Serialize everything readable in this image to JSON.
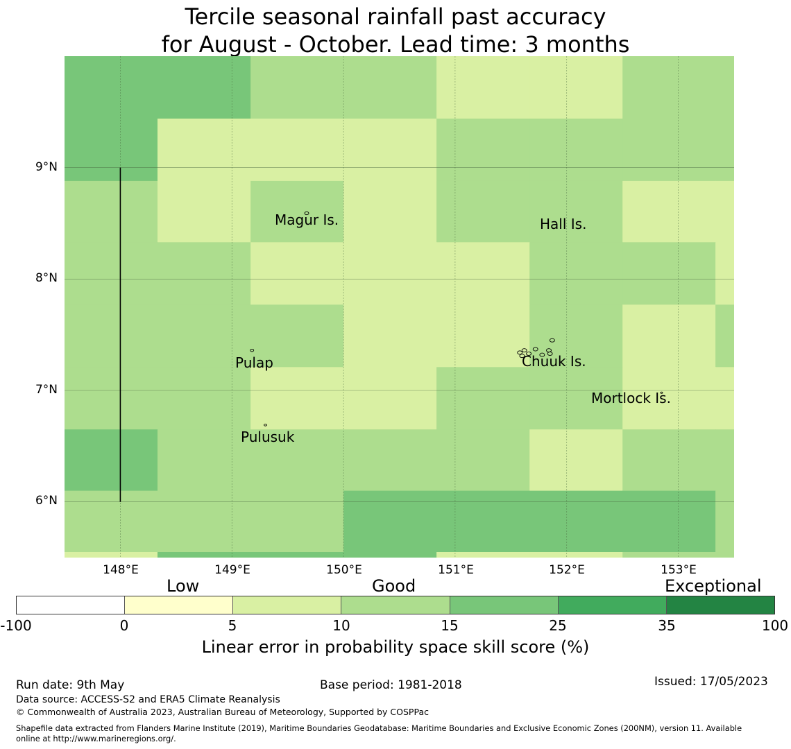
{
  "title": {
    "line1": "Tercile seasonal rainfall past accuracy",
    "line2": "for August - October. Lead time: 3 months"
  },
  "colors": {
    "exceptional_dark": "#238443",
    "band_25_35": "#41ab5d",
    "band_15_25": "#78c679",
    "band_10_15": "#addd8e",
    "band_5_10": "#d9f0a3",
    "band_0_5": "#ffffcc",
    "band_neg": "#ffffff"
  },
  "grid": {
    "col_edges_lon": [
      147.5,
      148.333,
      149.167,
      150.0,
      150.833,
      151.667,
      152.5,
      153.333,
      153.5
    ],
    "row_edges_lat": [
      10.0,
      9.44,
      8.88,
      8.33,
      7.77,
      7.21,
      6.65,
      6.1,
      5.55,
      5.5
    ],
    "cells": [
      [
        3,
        3,
        2,
        2,
        1,
        1,
        2,
        2
      ],
      [
        3,
        1,
        1,
        1,
        2,
        2,
        2,
        2
      ],
      [
        2,
        1,
        2,
        1,
        2,
        2,
        1,
        1
      ],
      [
        2,
        2,
        1,
        1,
        1,
        2,
        2,
        1
      ],
      [
        2,
        2,
        2,
        1,
        1,
        2,
        1,
        2
      ],
      [
        2,
        2,
        1,
        1,
        2,
        2,
        1,
        1
      ],
      [
        3,
        2,
        2,
        2,
        2,
        1,
        2,
        2
      ],
      [
        2,
        2,
        2,
        3,
        3,
        3,
        3,
        2
      ],
      [
        1,
        3,
        3,
        3,
        1,
        1,
        2,
        2
      ]
    ]
  },
  "axes": {
    "lat_ticks": [
      "9°N",
      "8°N",
      "7°N",
      "6°N"
    ],
    "lon_ticks": [
      "148°E",
      "149°E",
      "150°E",
      "151°E",
      "152°E",
      "153°E"
    ]
  },
  "places": [
    {
      "name": "Magur Is."
    },
    {
      "name": "Hall Is."
    },
    {
      "name": "Pulap"
    },
    {
      "name": "Chuuk Is."
    },
    {
      "name": "Mortlock Is."
    },
    {
      "name": "Pulusuk"
    }
  ],
  "legend": {
    "categories": [
      "Low",
      "Good",
      "Exceptional"
    ],
    "ticks": [
      "-100",
      "0",
      "5",
      "10",
      "15",
      "25",
      "35",
      "100"
    ],
    "label": "Linear error in probability space skill score (%)"
  },
  "footer": {
    "run_date": "Run date: 9th May",
    "base_period": "Base period: 1981-2018",
    "issued": "Issued: 17/05/2023",
    "data_source": "Data source: ACCESS-S2 and ERA5 Climate Reanalysis",
    "copyright": "© Commonwealth of Australia 2023, Australian Bureau of Meteorology, Supported by COSPPac",
    "shapefile_line1": "Shapefile data extracted from Flanders Marine Institute (2019), Maritime Boundaries Geodatabase: Maritime Boundaries and Exclusive Economic Zones (200NM), version 11. Available",
    "shapefile_line2": "online at http://www.marineregions.org/."
  }
}
